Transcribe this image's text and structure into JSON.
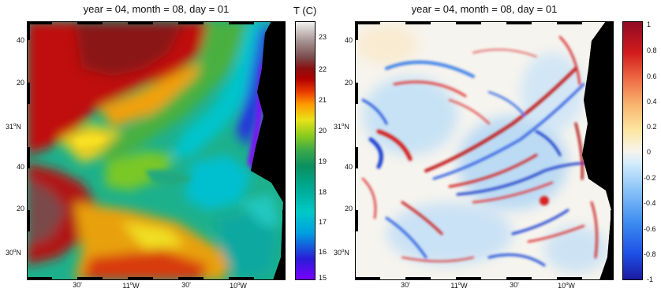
{
  "left_panel": {
    "title": "year = 04, month = 08, day = 01",
    "lat_ticks": [
      "40",
      "20",
      "31°N",
      "40",
      "20",
      "30°N"
    ],
    "lon_ticks": [
      "30'",
      "11°W",
      "30'",
      "10°W"
    ],
    "colorbar": {
      "title": "T (C)",
      "ticks": [
        "23",
        "22",
        "21",
        "20",
        "19",
        "18",
        "17",
        "16",
        "15"
      ],
      "range": [
        15,
        23.5
      ],
      "colors": [
        "#7a00ff",
        "#2a1cd6",
        "#00a0e0",
        "#00c8c8",
        "#00a890",
        "#0a9060",
        "#3aa84a",
        "#8ccc1e",
        "#e8e21a",
        "#ff9a00",
        "#e83a00",
        "#b00000",
        "#8a1010",
        "#7a4848",
        "#a08c8c",
        "#f0f0f0"
      ]
    }
  },
  "right_panel": {
    "title": "year = 04, month = 08, day = 01",
    "lat_ticks": [
      "40",
      "20",
      "31°N",
      "40",
      "20",
      "30°N"
    ],
    "lon_ticks": [
      "30'",
      "11°W",
      "30'",
      "10°W"
    ],
    "colorbar": {
      "title": "",
      "ticks": [
        "1",
        "0.8",
        "0.6",
        "0.4",
        "0.2",
        "0",
        "-0.2",
        "-0.4",
        "-0.6",
        "-0.8",
        "-1"
      ],
      "range": [
        -1,
        1
      ],
      "colors": [
        "#1a1aa0",
        "#1e50e6",
        "#3c8cf0",
        "#8cc4f8",
        "#d2ecfc",
        "#f8f4ec",
        "#fce6a0",
        "#f8b46e",
        "#ee6a44",
        "#d21c1c",
        "#900a24"
      ]
    }
  }
}
